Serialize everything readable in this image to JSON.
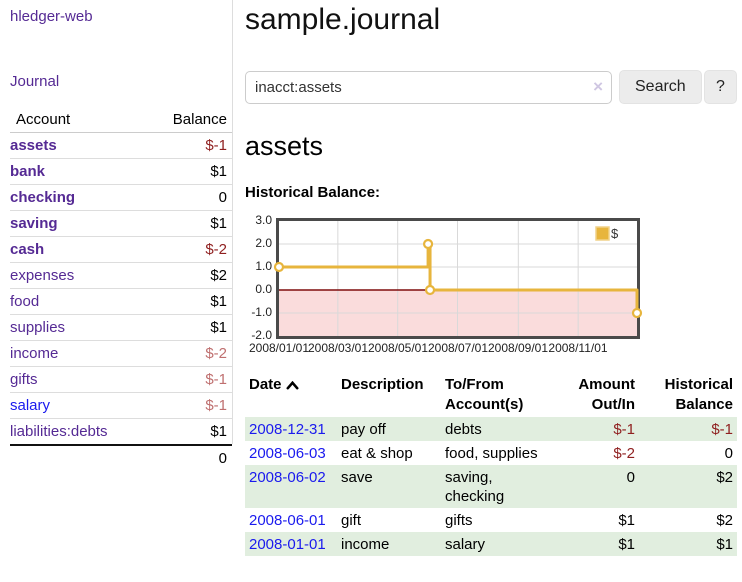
{
  "sidebar": {
    "brand": "hledger-web",
    "nav_journal": "Journal",
    "accounts_table": {
      "account_header": "Account",
      "balance_header": "Balance",
      "rows": [
        {
          "account": "assets",
          "balance": "$-1"
        },
        {
          "account": "bank",
          "balance": "$1"
        },
        {
          "account": "checking",
          "balance": "0"
        },
        {
          "account": "saving",
          "balance": "$1"
        },
        {
          "account": "cash",
          "balance": "$-2"
        },
        {
          "account": "expenses",
          "balance": "$2"
        },
        {
          "account": "food",
          "balance": "$1"
        },
        {
          "account": "supplies",
          "balance": "$1"
        },
        {
          "account": "income",
          "balance": "$-2"
        },
        {
          "account": "gifts",
          "balance": "$-1"
        },
        {
          "account": "salary",
          "balance": "$-1"
        },
        {
          "account": "liabilities:debts",
          "balance": "$1"
        }
      ],
      "total": "0"
    }
  },
  "main": {
    "title": "sample.journal",
    "search": {
      "value": "inacct:assets",
      "clear_icon": "×",
      "search_button": "Search",
      "help_button": "?"
    },
    "account_heading": "assets",
    "historical_label": "Historical Balance:"
  },
  "chart_data": {
    "type": "line",
    "title": "Historical Balance",
    "step": true,
    "x_start": "2008-01-01",
    "x_span_days": 365,
    "ylim": [
      -2,
      3
    ],
    "y_ticks": [
      "3.0",
      "2.0",
      "1.0",
      "0.0",
      "-1.0",
      "-2.0"
    ],
    "x_ticks": [
      "2008/01/01",
      "2008/03/01",
      "2008/05/01",
      "2008/07/01",
      "2008/09/01",
      "2008/11/01"
    ],
    "series": [
      {
        "name": "$",
        "color": "#e7b53d",
        "points": [
          [
            "2008-01-01",
            1
          ],
          [
            "2008-06-01",
            2
          ],
          [
            "2008-06-03",
            0
          ],
          [
            "2008-12-31",
            -1
          ]
        ]
      }
    ],
    "grid": true,
    "legend_position": "top-right",
    "gridline_color": "#d9d9d9",
    "negative_region_color": "#fadcdc",
    "zero_line_color": "#7f0d0d",
    "border_color": "#4a4a4a"
  },
  "register": {
    "headers": {
      "date": "Date",
      "description": "Description",
      "accounts": "To/From Account(s)",
      "amount": "Amount Out/In",
      "balance": "Historical Balance"
    },
    "rows": [
      {
        "date": "2008-12-31",
        "description": "pay off",
        "accounts": "debts",
        "amount": "$-1",
        "balance": "$-1"
      },
      {
        "date": "2008-06-03",
        "description": "eat & shop",
        "accounts": "food, supplies",
        "amount": "$-2",
        "balance": "0"
      },
      {
        "date": "2008-06-02",
        "description": "save",
        "accounts": "saving, checking",
        "amount": "0",
        "balance": "$2"
      },
      {
        "date": "2008-06-01",
        "description": "gift",
        "accounts": "gifts",
        "amount": "$1",
        "balance": "$2"
      },
      {
        "date": "2008-01-01",
        "description": "income",
        "accounts": "salary",
        "amount": "$1",
        "balance": "$1"
      }
    ]
  }
}
